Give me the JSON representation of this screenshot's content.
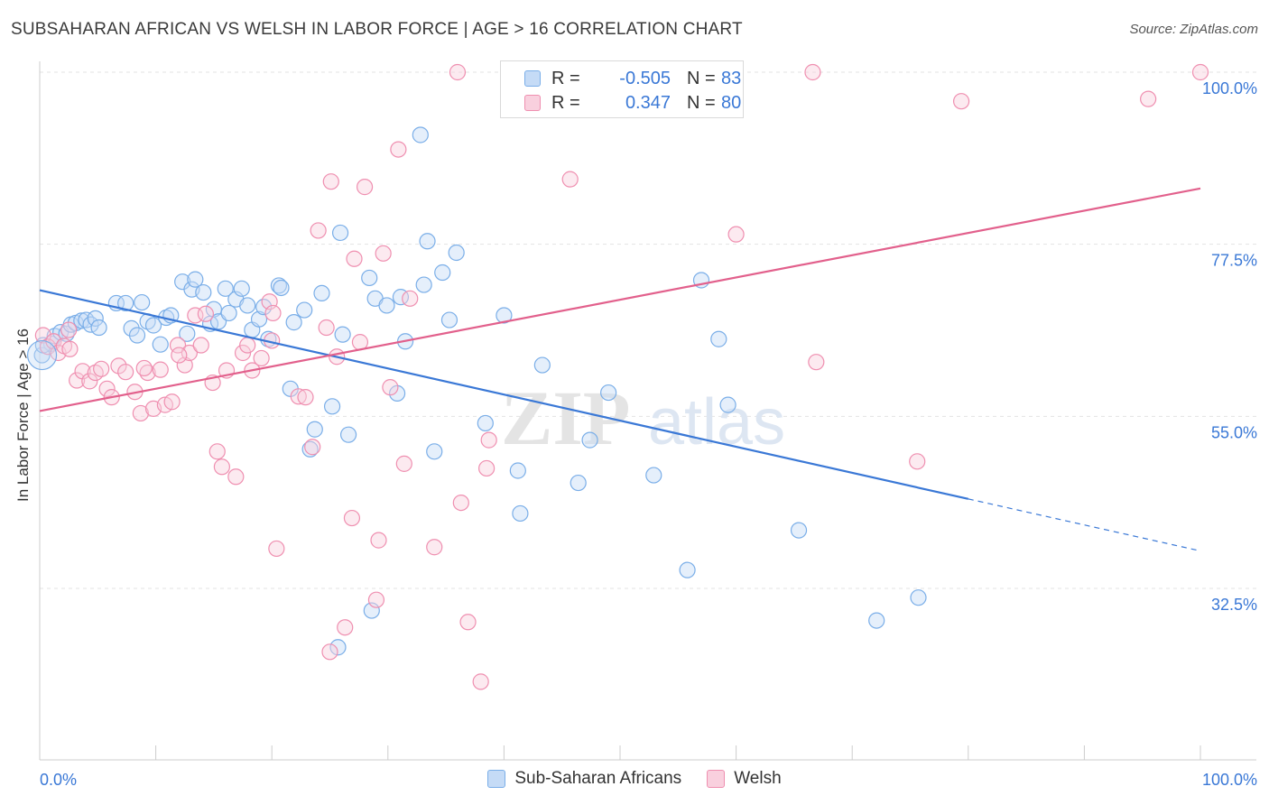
{
  "header": {
    "title": "SUBSAHARAN AFRICAN VS WELSH IN LABOR FORCE | AGE > 16 CORRELATION CHART",
    "source": "Source: ZipAtlas.com"
  },
  "watermark": {
    "text_bold": "ZIP",
    "text_light": "atlas"
  },
  "stats": [
    {
      "r_label": "R =",
      "r_value": "-0.505",
      "n_label": "N =",
      "n_value": "83",
      "color": "#7aaee8",
      "fill": "#c5dbf6"
    },
    {
      "r_label": "R =",
      "r_value": "0.347",
      "n_label": "N =",
      "n_value": "80",
      "color": "#ef8fb0",
      "fill": "#f9d0de"
    }
  ],
  "legend": [
    {
      "label": "Sub-Saharan Africans",
      "color": "#7aaee8",
      "fill": "#c5dbf6"
    },
    {
      "label": "Welsh",
      "color": "#ef8fb0",
      "fill": "#f9d0de"
    }
  ],
  "colors": {
    "blue_line": "#3a78d6",
    "pink_line": "#e2608c",
    "tick_label": "#3a78d6"
  },
  "chart_data": {
    "type": "scatter",
    "title": "SUBSAHARAN AFRICAN VS WELSH IN LABOR FORCE | AGE > 16 CORRELATION CHART",
    "xlabel": "",
    "ylabel": "In Labor Force | Age > 16",
    "xlim": [
      0,
      100
    ],
    "ylim": [
      14,
      101
    ],
    "x_tick_labels": [
      "0.0%",
      "100.0%"
    ],
    "y_ticks": [
      32.5,
      55.0,
      77.5,
      100.0
    ],
    "y_tick_labels": [
      "32.5%",
      "55.0%",
      "77.5%",
      "100.0%"
    ],
    "grid": true,
    "legend_position": "bottom-center",
    "series": [
      {
        "name": "Sub-Saharan Africans",
        "trend": {
          "x0": 0,
          "y0": 71.5,
          "x1": 80,
          "y1": 44.2,
          "dash_x1": 100,
          "dash_y1": 37.4
        },
        "points": [
          [
            0.2,
            63.0
          ],
          [
            1.0,
            64.5
          ],
          [
            1.3,
            65.5
          ],
          [
            1.8,
            66.0
          ],
          [
            2.3,
            65.8
          ],
          [
            2.7,
            67.0
          ],
          [
            3.1,
            67.2
          ],
          [
            3.6,
            67.5
          ],
          [
            4.0,
            67.6
          ],
          [
            4.4,
            67.0
          ],
          [
            4.8,
            67.8
          ],
          [
            5.1,
            66.6
          ],
          [
            6.6,
            69.8
          ],
          [
            7.4,
            69.8
          ],
          [
            7.9,
            66.5
          ],
          [
            8.4,
            65.6
          ],
          [
            8.8,
            69.9
          ],
          [
            9.3,
            67.4
          ],
          [
            9.8,
            66.9
          ],
          [
            10.4,
            64.4
          ],
          [
            10.9,
            67.9
          ],
          [
            11.3,
            68.2
          ],
          [
            12.3,
            72.6
          ],
          [
            12.7,
            65.8
          ],
          [
            13.1,
            71.6
          ],
          [
            13.4,
            72.9
          ],
          [
            14.1,
            71.2
          ],
          [
            14.7,
            67.1
          ],
          [
            15.0,
            69.0
          ],
          [
            15.4,
            67.4
          ],
          [
            16.0,
            71.7
          ],
          [
            16.3,
            68.5
          ],
          [
            16.9,
            70.3
          ],
          [
            17.4,
            71.7
          ],
          [
            17.9,
            69.5
          ],
          [
            18.3,
            66.3
          ],
          [
            18.9,
            67.7
          ],
          [
            19.3,
            69.3
          ],
          [
            19.7,
            65.1
          ],
          [
            20.6,
            72.1
          ],
          [
            20.8,
            71.8
          ],
          [
            21.6,
            58.6
          ],
          [
            21.9,
            67.3
          ],
          [
            22.8,
            68.9
          ],
          [
            23.3,
            50.7
          ],
          [
            23.7,
            53.3
          ],
          [
            24.3,
            71.1
          ],
          [
            25.2,
            56.3
          ],
          [
            25.7,
            24.8
          ],
          [
            25.9,
            79.0
          ],
          [
            26.1,
            65.7
          ],
          [
            26.6,
            52.6
          ],
          [
            28.4,
            73.1
          ],
          [
            28.6,
            29.6
          ],
          [
            28.9,
            70.4
          ],
          [
            29.9,
            69.5
          ],
          [
            30.8,
            58.0
          ],
          [
            31.1,
            70.6
          ],
          [
            31.5,
            64.8
          ],
          [
            32.8,
            91.8
          ],
          [
            33.1,
            72.2
          ],
          [
            33.4,
            77.9
          ],
          [
            34.0,
            50.4
          ],
          [
            34.7,
            73.8
          ],
          [
            35.3,
            67.6
          ],
          [
            35.9,
            76.4
          ],
          [
            38.4,
            54.1
          ],
          [
            40.0,
            68.2
          ],
          [
            41.2,
            47.9
          ],
          [
            41.4,
            42.3
          ],
          [
            43.3,
            61.7
          ],
          [
            46.4,
            46.3
          ],
          [
            47.4,
            51.9
          ],
          [
            49.0,
            58.1
          ],
          [
            52.9,
            47.3
          ],
          [
            55.8,
            34.9
          ],
          [
            57.0,
            72.8
          ],
          [
            58.5,
            65.1
          ],
          [
            59.3,
            56.5
          ],
          [
            65.4,
            40.1
          ],
          [
            72.1,
            28.3
          ],
          [
            75.7,
            31.3
          ],
          [
            0.3,
            64.3
          ]
        ]
      },
      {
        "name": "Welsh",
        "trend": {
          "x0": 0,
          "y0": 55.7,
          "x1": 100,
          "y1": 84.8
        },
        "points": [
          [
            0.3,
            65.6
          ],
          [
            0.7,
            64.1
          ],
          [
            1.2,
            64.8
          ],
          [
            1.6,
            63.3
          ],
          [
            2.1,
            64.2
          ],
          [
            2.6,
            63.8
          ],
          [
            3.2,
            59.7
          ],
          [
            3.7,
            60.9
          ],
          [
            4.3,
            59.6
          ],
          [
            4.8,
            60.7
          ],
          [
            5.3,
            61.2
          ],
          [
            5.8,
            58.6
          ],
          [
            6.2,
            57.5
          ],
          [
            6.8,
            61.6
          ],
          [
            7.4,
            60.8
          ],
          [
            8.2,
            58.2
          ],
          [
            8.7,
            55.4
          ],
          [
            9.3,
            60.7
          ],
          [
            9.8,
            56.0
          ],
          [
            10.4,
            61.1
          ],
          [
            10.8,
            56.5
          ],
          [
            11.4,
            56.9
          ],
          [
            11.9,
            64.3
          ],
          [
            12.5,
            61.7
          ],
          [
            12.9,
            63.3
          ],
          [
            13.4,
            68.2
          ],
          [
            13.9,
            64.3
          ],
          [
            14.3,
            68.4
          ],
          [
            14.9,
            59.4
          ],
          [
            15.3,
            50.4
          ],
          [
            15.7,
            48.4
          ],
          [
            16.1,
            61.0
          ],
          [
            16.9,
            47.1
          ],
          [
            17.5,
            63.3
          ],
          [
            17.9,
            64.3
          ],
          [
            18.3,
            61.0
          ],
          [
            19.1,
            62.6
          ],
          [
            19.8,
            70.0
          ],
          [
            20.1,
            68.5
          ],
          [
            20.4,
            37.7
          ],
          [
            22.3,
            57.6
          ],
          [
            22.9,
            57.5
          ],
          [
            23.5,
            51.0
          ],
          [
            24.0,
            79.3
          ],
          [
            24.7,
            66.6
          ],
          [
            25.1,
            85.7
          ],
          [
            25.6,
            62.8
          ],
          [
            26.3,
            27.4
          ],
          [
            26.9,
            41.7
          ],
          [
            27.1,
            75.6
          ],
          [
            27.6,
            64.7
          ],
          [
            28.0,
            85.0
          ],
          [
            29.0,
            31.0
          ],
          [
            29.2,
            38.8
          ],
          [
            29.6,
            76.3
          ],
          [
            30.2,
            58.8
          ],
          [
            30.9,
            89.9
          ],
          [
            31.4,
            48.8
          ],
          [
            31.9,
            70.4
          ],
          [
            34.0,
            37.9
          ],
          [
            36.0,
            100.0
          ],
          [
            36.3,
            43.7
          ],
          [
            36.9,
            28.1
          ],
          [
            38.5,
            48.2
          ],
          [
            38.7,
            51.9
          ],
          [
            40.8,
            100.0
          ],
          [
            45.7,
            86.0
          ],
          [
            60.0,
            78.8
          ],
          [
            66.6,
            100.0
          ],
          [
            66.9,
            62.1
          ],
          [
            75.6,
            49.1
          ],
          [
            79.4,
            96.2
          ],
          [
            95.5,
            96.5
          ],
          [
            100.0,
            100.0
          ],
          [
            25.0,
            24.2
          ],
          [
            38.0,
            20.3
          ],
          [
            2.5,
            66.3
          ],
          [
            9.0,
            61.3
          ],
          [
            12.0,
            63.0
          ],
          [
            20.0,
            64.9
          ]
        ]
      }
    ]
  }
}
